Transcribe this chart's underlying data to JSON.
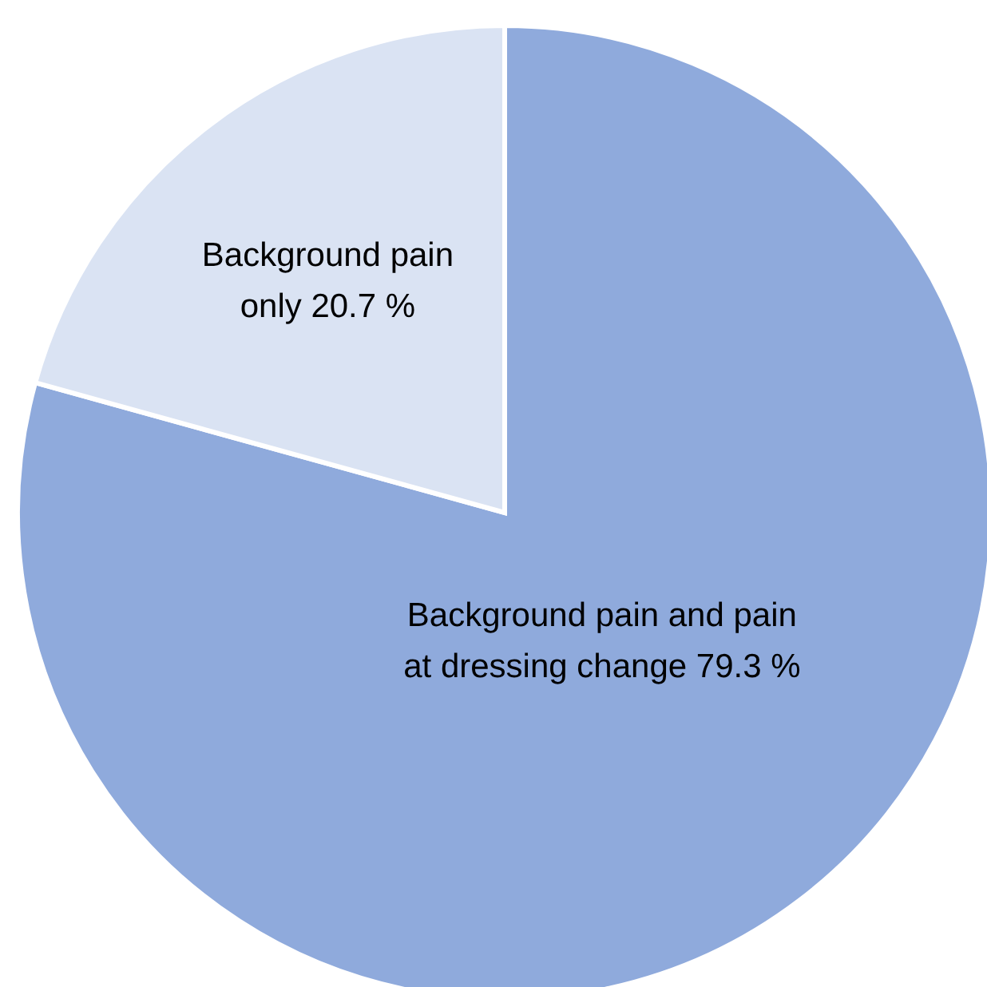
{
  "chart_data": {
    "type": "pie",
    "categories": [
      "Background pain and pain at dressing change",
      "Background pain only"
    ],
    "values": [
      79.3,
      20.7
    ],
    "colors": [
      "#8faadc",
      "#dae3f3"
    ],
    "value_labels": [
      "79.3 %",
      "20.7 %"
    ],
    "legend": false
  }
}
